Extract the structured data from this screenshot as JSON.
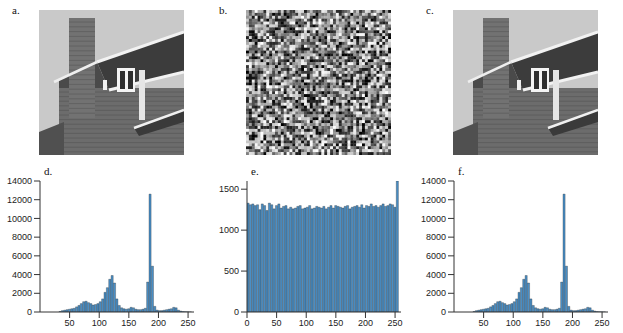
{
  "chart_data": [
    {
      "type": "image",
      "label": "a."
    },
    {
      "type": "noise",
      "label": "b."
    },
    {
      "type": "image",
      "label": "c."
    },
    {
      "type": "histogram",
      "label": "d.",
      "color": "#4a8fc6",
      "bins": [
        0,
        4,
        8,
        12,
        16,
        20,
        24,
        28,
        32,
        36,
        40,
        44,
        48,
        52,
        56,
        60,
        64,
        68,
        72,
        76,
        80,
        84,
        88,
        92,
        96,
        100,
        104,
        108,
        112,
        116,
        120,
        124,
        128,
        132,
        136,
        140,
        144,
        148,
        152,
        156,
        160,
        164,
        168,
        172,
        176,
        180,
        184,
        188,
        192,
        196,
        200,
        204,
        208,
        212,
        216,
        220,
        224,
        228,
        232,
        236,
        240,
        244,
        248,
        252,
        256
      ],
      "values": [
        0,
        0,
        0,
        0,
        0,
        0,
        0,
        0,
        50,
        150,
        200,
        250,
        300,
        350,
        400,
        550,
        700,
        900,
        1100,
        1150,
        1000,
        900,
        750,
        800,
        900,
        1100,
        1400,
        2100,
        2600,
        3500,
        3900,
        3100,
        1400,
        700,
        450,
        350,
        300,
        350,
        500,
        450,
        300,
        250,
        250,
        300,
        400,
        3200,
        12600,
        4900,
        600,
        200,
        150,
        150,
        200,
        250,
        300,
        350,
        500,
        450,
        200,
        100,
        50,
        30,
        20,
        10
      ],
      "xlim": [
        0,
        260
      ],
      "xticks": [
        50,
        100,
        150,
        200,
        250
      ],
      "ylim": [
        0,
        14000
      ],
      "yticks": [
        0,
        2000,
        4000,
        6000,
        8000,
        10000,
        12000,
        14000
      ]
    },
    {
      "type": "histogram",
      "label": "e.",
      "color": "#4a8fc6",
      "bins": [
        0,
        4,
        8,
        12,
        16,
        20,
        24,
        28,
        32,
        36,
        40,
        44,
        48,
        52,
        56,
        60,
        64,
        68,
        72,
        76,
        80,
        84,
        88,
        92,
        96,
        100,
        104,
        108,
        112,
        116,
        120,
        124,
        128,
        132,
        136,
        140,
        144,
        148,
        152,
        156,
        160,
        164,
        168,
        172,
        176,
        180,
        184,
        188,
        192,
        196,
        200,
        204,
        208,
        212,
        216,
        220,
        224,
        228,
        232,
        236,
        240,
        244,
        248,
        252,
        256
      ],
      "values": [
        1330,
        1310,
        1320,
        1300,
        1310,
        1250,
        1320,
        1300,
        1240,
        1330,
        1310,
        1260,
        1300,
        1320,
        1270,
        1290,
        1300,
        1260,
        1280,
        1260,
        1270,
        1290,
        1300,
        1260,
        1270,
        1280,
        1300,
        1260,
        1270,
        1290,
        1280,
        1270,
        1290,
        1260,
        1280,
        1300,
        1270,
        1300,
        1290,
        1280,
        1270,
        1290,
        1300,
        1260,
        1280,
        1290,
        1300,
        1280,
        1310,
        1270,
        1300,
        1290,
        1320,
        1290,
        1300,
        1280,
        1300,
        1320,
        1290,
        1300,
        1320,
        1310,
        1280,
        1600
      ],
      "xlim": [
        0,
        260
      ],
      "xticks": [
        0,
        50,
        100,
        150,
        200,
        250
      ],
      "ylim": [
        0,
        1600
      ],
      "yticks": [
        0,
        500,
        1000,
        1500
      ]
    },
    {
      "type": "histogram",
      "label": "f.",
      "color": "#4a8fc6",
      "bins": [
        0,
        4,
        8,
        12,
        16,
        20,
        24,
        28,
        32,
        36,
        40,
        44,
        48,
        52,
        56,
        60,
        64,
        68,
        72,
        76,
        80,
        84,
        88,
        92,
        96,
        100,
        104,
        108,
        112,
        116,
        120,
        124,
        128,
        132,
        136,
        140,
        144,
        148,
        152,
        156,
        160,
        164,
        168,
        172,
        176,
        180,
        184,
        188,
        192,
        196,
        200,
        204,
        208,
        212,
        216,
        220,
        224,
        228,
        232,
        236,
        240,
        244,
        248,
        252,
        256
      ],
      "values": [
        0,
        0,
        0,
        0,
        0,
        0,
        0,
        0,
        50,
        150,
        200,
        250,
        300,
        350,
        400,
        550,
        700,
        900,
        1100,
        1150,
        1000,
        900,
        750,
        800,
        900,
        1100,
        1400,
        2100,
        2600,
        3500,
        3900,
        3100,
        1400,
        700,
        450,
        350,
        300,
        350,
        500,
        450,
        300,
        250,
        250,
        300,
        400,
        3200,
        12600,
        4900,
        600,
        200,
        150,
        150,
        200,
        250,
        300,
        350,
        500,
        450,
        200,
        100,
        50,
        30,
        20,
        10
      ],
      "xlim": [
        0,
        260
      ],
      "xticks": [
        50,
        100,
        150,
        200,
        250
      ],
      "ylim": [
        0,
        14000
      ],
      "yticks": [
        0,
        2000,
        4000,
        6000,
        8000,
        10000,
        12000,
        14000
      ]
    }
  ]
}
